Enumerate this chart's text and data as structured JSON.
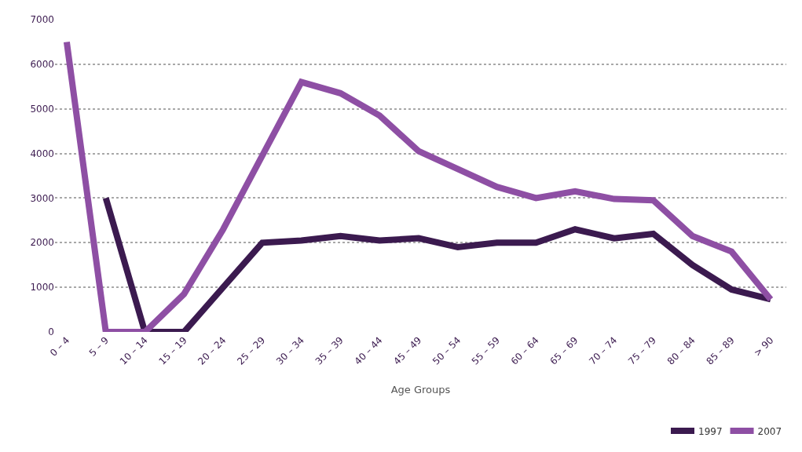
{
  "chart_data": {
    "type": "line",
    "xlabel": "Age Groups",
    "categories": [
      "0 – 4",
      "5 – 9",
      "10 – 14",
      "15 – 19",
      "20 – 24",
      "25 – 29",
      "30 – 34",
      "35 – 39",
      "40 – 44",
      "45 – 49",
      "50 – 54",
      "55 – 59",
      "60 – 64",
      "65 – 69",
      "70 – 74",
      "75 – 79",
      "80 – 84",
      "85 – 89",
      "> 90"
    ],
    "series": [
      {
        "name": "1997",
        "color": "#3b1a4f",
        "values": [
          null,
          3000,
          0,
          0,
          1000,
          2000,
          2050,
          2150,
          2050,
          2100,
          1900,
          2000,
          2000,
          2300,
          2100,
          2200,
          1500,
          950,
          730
        ]
      },
      {
        "name": "2007",
        "color": "#8e4fa4",
        "values": [
          6500,
          0,
          0,
          850,
          2300,
          3950,
          5600,
          5350,
          4850,
          4050,
          3650,
          3250,
          3000,
          3150,
          2980,
          2950,
          2150,
          1800,
          730
        ]
      }
    ],
    "ylim": [
      0,
      7000
    ],
    "yticks": [
      0,
      1000,
      2000,
      3000,
      4000,
      5000,
      6000,
      7000
    ],
    "grid": "y",
    "legend": "bottom right",
    "marker": "none",
    "line_style": "solid"
  }
}
